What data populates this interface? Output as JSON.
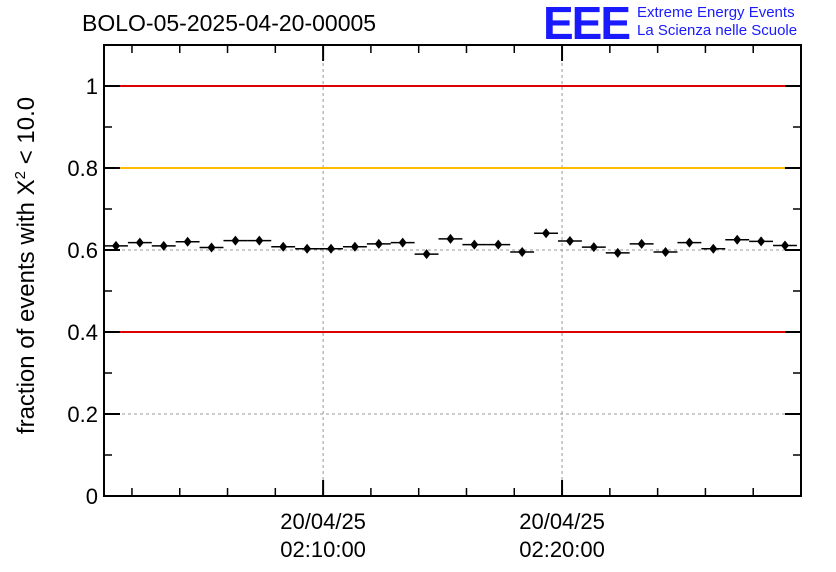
{
  "header": {
    "run_title": "BOLO-05-2025-04-20-00005",
    "logo_mark": "EEE",
    "logo_line1": "Extreme Energy Events",
    "logo_line2": "La Scienza nelle Scuole"
  },
  "colors": {
    "red_line": "#dd0000",
    "yellow_line": "#ffbb00",
    "logo_blue": "#1a1aff",
    "grid": "#999999",
    "marker": "#000000"
  },
  "chart_data": {
    "type": "scatter",
    "title": "BOLO-05-2025-04-20-00005",
    "ylabel_prefix": "fraction of events with ",
    "ylabel_symbol": "X",
    "ylabel_exp": "2",
    "ylabel_suffix": " < 10.0",
    "xlabel": "",
    "ylim": [
      0,
      1.1
    ],
    "xlim_minutes": [
      0,
      29.17
    ],
    "yticks": [
      0,
      0.2,
      0.4,
      0.6,
      0.8,
      1
    ],
    "ytick_labels": [
      "0",
      "0.2",
      "0.4",
      "0.6",
      "0.8",
      "1"
    ],
    "xticks": [
      {
        "minute": 9.17,
        "date": "20/04/25",
        "time": "02:10:00"
      },
      {
        "minute": 19.17,
        "date": "20/04/25",
        "time": "02:20:00"
      }
    ],
    "threshold_lines": [
      {
        "y": 1.0,
        "color": "#dd0000"
      },
      {
        "y": 0.8,
        "color": "#ffbb00"
      },
      {
        "y": 0.4,
        "color": "#dd0000"
      }
    ],
    "bin_width_minutes": 1.0,
    "points": [
      {
        "x": 0.5,
        "y": 0.61
      },
      {
        "x": 1.5,
        "y": 0.618
      },
      {
        "x": 2.5,
        "y": 0.61
      },
      {
        "x": 3.5,
        "y": 0.62
      },
      {
        "x": 4.5,
        "y": 0.606
      },
      {
        "x": 5.5,
        "y": 0.623
      },
      {
        "x": 6.5,
        "y": 0.623
      },
      {
        "x": 7.5,
        "y": 0.608
      },
      {
        "x": 8.5,
        "y": 0.603
      },
      {
        "x": 9.5,
        "y": 0.603
      },
      {
        "x": 10.5,
        "y": 0.608
      },
      {
        "x": 11.5,
        "y": 0.615
      },
      {
        "x": 12.5,
        "y": 0.618
      },
      {
        "x": 13.5,
        "y": 0.59
      },
      {
        "x": 14.5,
        "y": 0.627
      },
      {
        "x": 15.5,
        "y": 0.613
      },
      {
        "x": 16.5,
        "y": 0.613
      },
      {
        "x": 17.5,
        "y": 0.595
      },
      {
        "x": 18.5,
        "y": 0.641
      },
      {
        "x": 19.5,
        "y": 0.622
      },
      {
        "x": 20.5,
        "y": 0.607
      },
      {
        "x": 21.5,
        "y": 0.593
      },
      {
        "x": 22.5,
        "y": 0.615
      },
      {
        "x": 23.5,
        "y": 0.595
      },
      {
        "x": 24.5,
        "y": 0.618
      },
      {
        "x": 25.5,
        "y": 0.603
      },
      {
        "x": 26.5,
        "y": 0.625
      },
      {
        "x": 27.5,
        "y": 0.621
      },
      {
        "x": 28.5,
        "y": 0.611
      }
    ]
  }
}
